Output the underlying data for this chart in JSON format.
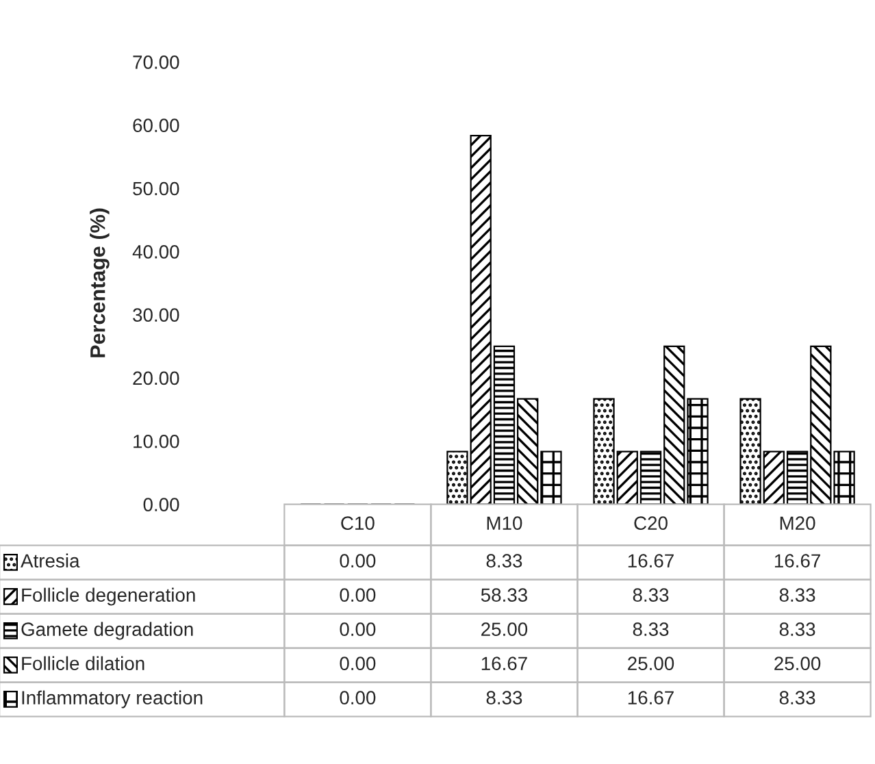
{
  "chart_data": {
    "type": "bar",
    "ylabel": "Percentage (%)",
    "categories": [
      "C10",
      "M10",
      "C20",
      "M20"
    ],
    "series": [
      {
        "name": "Atresia",
        "color": "#000000",
        "values": [
          0,
          8.33,
          16.67,
          16.67
        ],
        "value_labels": [
          "0.00",
          "8.33",
          "16.67",
          "16.67"
        ]
      },
      {
        "name": "Follicle degeneration",
        "color": "#000000",
        "values": [
          0,
          58.33,
          8.33,
          8.33
        ],
        "value_labels": [
          "0.00",
          "58.33",
          "8.33",
          "8.33"
        ]
      },
      {
        "name": "Gamete degradation",
        "color": "#000000",
        "values": [
          0,
          25.0,
          8.33,
          8.33
        ],
        "value_labels": [
          "0.00",
          "25.00",
          "8.33",
          "8.33"
        ]
      },
      {
        "name": "Follicle dilation",
        "color": "#000000",
        "values": [
          0,
          16.67,
          25.0,
          25.0
        ],
        "value_labels": [
          "0.00",
          "16.67",
          "25.00",
          "25.00"
        ]
      },
      {
        "name": "Inflammatory reaction",
        "color": "#000000",
        "values": [
          0,
          8.33,
          16.67,
          8.33
        ],
        "value_labels": [
          "0.00",
          "8.33",
          "16.67",
          "8.33"
        ]
      }
    ],
    "ylim": [
      0,
      70
    ],
    "yticks": [
      {
        "value": 0,
        "label": "0.00"
      },
      {
        "value": 10,
        "label": "10.00"
      },
      {
        "value": 20,
        "label": "20.00"
      },
      {
        "value": 30,
        "label": "30.00"
      },
      {
        "value": 40,
        "label": "40.00"
      },
      {
        "value": 50,
        "label": "50.00"
      },
      {
        "value": 60,
        "label": "60.00"
      },
      {
        "value": 70,
        "label": "70.00"
      }
    ],
    "grid": false,
    "legend": "bottom left"
  }
}
